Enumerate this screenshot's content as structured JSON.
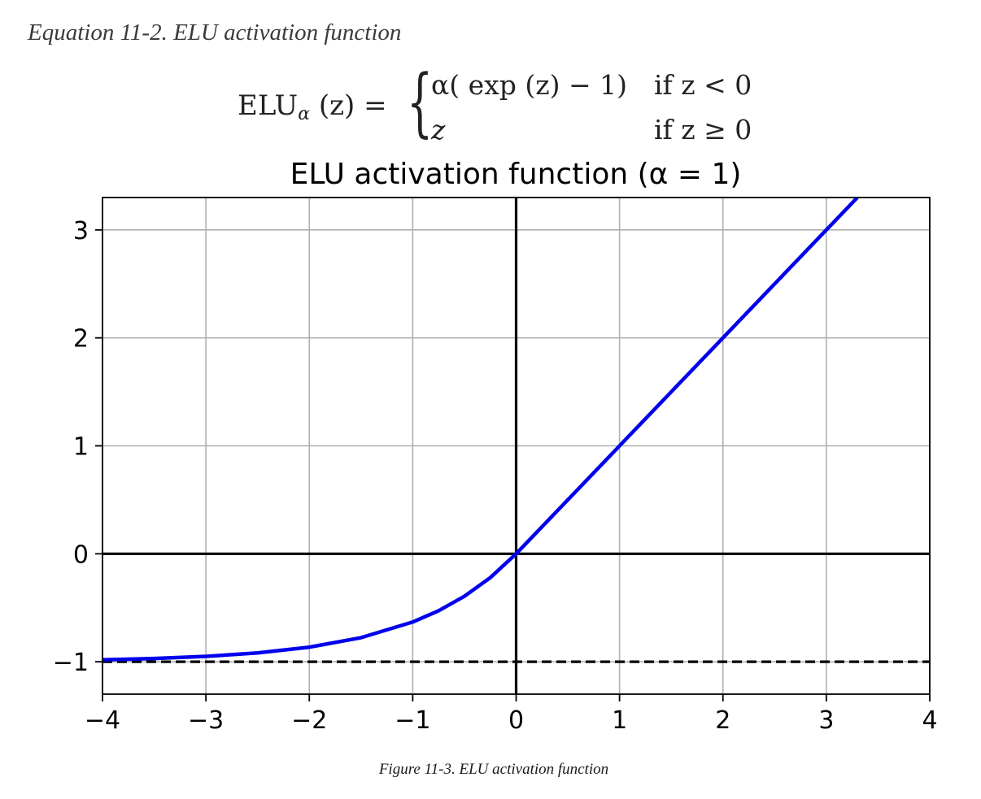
{
  "equation": {
    "caption": "Equation 11-2. ELU activation function",
    "lhs_name": "ELU",
    "lhs_sub": "α",
    "lhs_arg": "(z) =",
    "case1_expr": "α( exp (z) − 1)",
    "case1_cond": "if z < 0",
    "case2_expr": "z",
    "case2_cond": "if z ≥ 0"
  },
  "figure_caption": "Figure 11-3. ELU activation function",
  "chart_data": {
    "type": "line",
    "title": "ELU activation function (α = 1)",
    "xlabel": "",
    "ylabel": "",
    "xlim": [
      -4,
      4
    ],
    "ylim": [
      -1.3,
      3.3
    ],
    "grid": true,
    "xticks": [
      -4,
      -3,
      -2,
      -1,
      0,
      1,
      2,
      3,
      4
    ],
    "xtick_labels": [
      "−4",
      "−3",
      "−2",
      "−1",
      "0",
      "1",
      "2",
      "3",
      "4"
    ],
    "yticks": [
      -1,
      0,
      1,
      2,
      3
    ],
    "ytick_labels": [
      "−1",
      "0",
      "1",
      "2",
      "3"
    ],
    "series": [
      {
        "name": "ELU",
        "color": "#0000ee",
        "style": "solid",
        "x": [
          -4,
          -3.5,
          -3,
          -2.5,
          -2,
          -1.5,
          -1,
          -0.75,
          -0.5,
          -0.25,
          0,
          1,
          2,
          3,
          3.3
        ],
        "y": [
          -0.982,
          -0.97,
          -0.95,
          -0.918,
          -0.865,
          -0.777,
          -0.632,
          -0.528,
          -0.393,
          -0.221,
          0,
          1,
          2,
          3,
          3.3
        ]
      }
    ],
    "reference_lines": [
      {
        "name": "x-axis",
        "orientation": "horizontal",
        "value": 0,
        "style": "solid",
        "color": "#000000"
      },
      {
        "name": "y-axis",
        "orientation": "vertical",
        "value": 0,
        "style": "solid",
        "color": "#000000"
      },
      {
        "name": "asymptote",
        "orientation": "horizontal",
        "value": -1,
        "style": "dashed",
        "color": "#000000"
      }
    ]
  }
}
